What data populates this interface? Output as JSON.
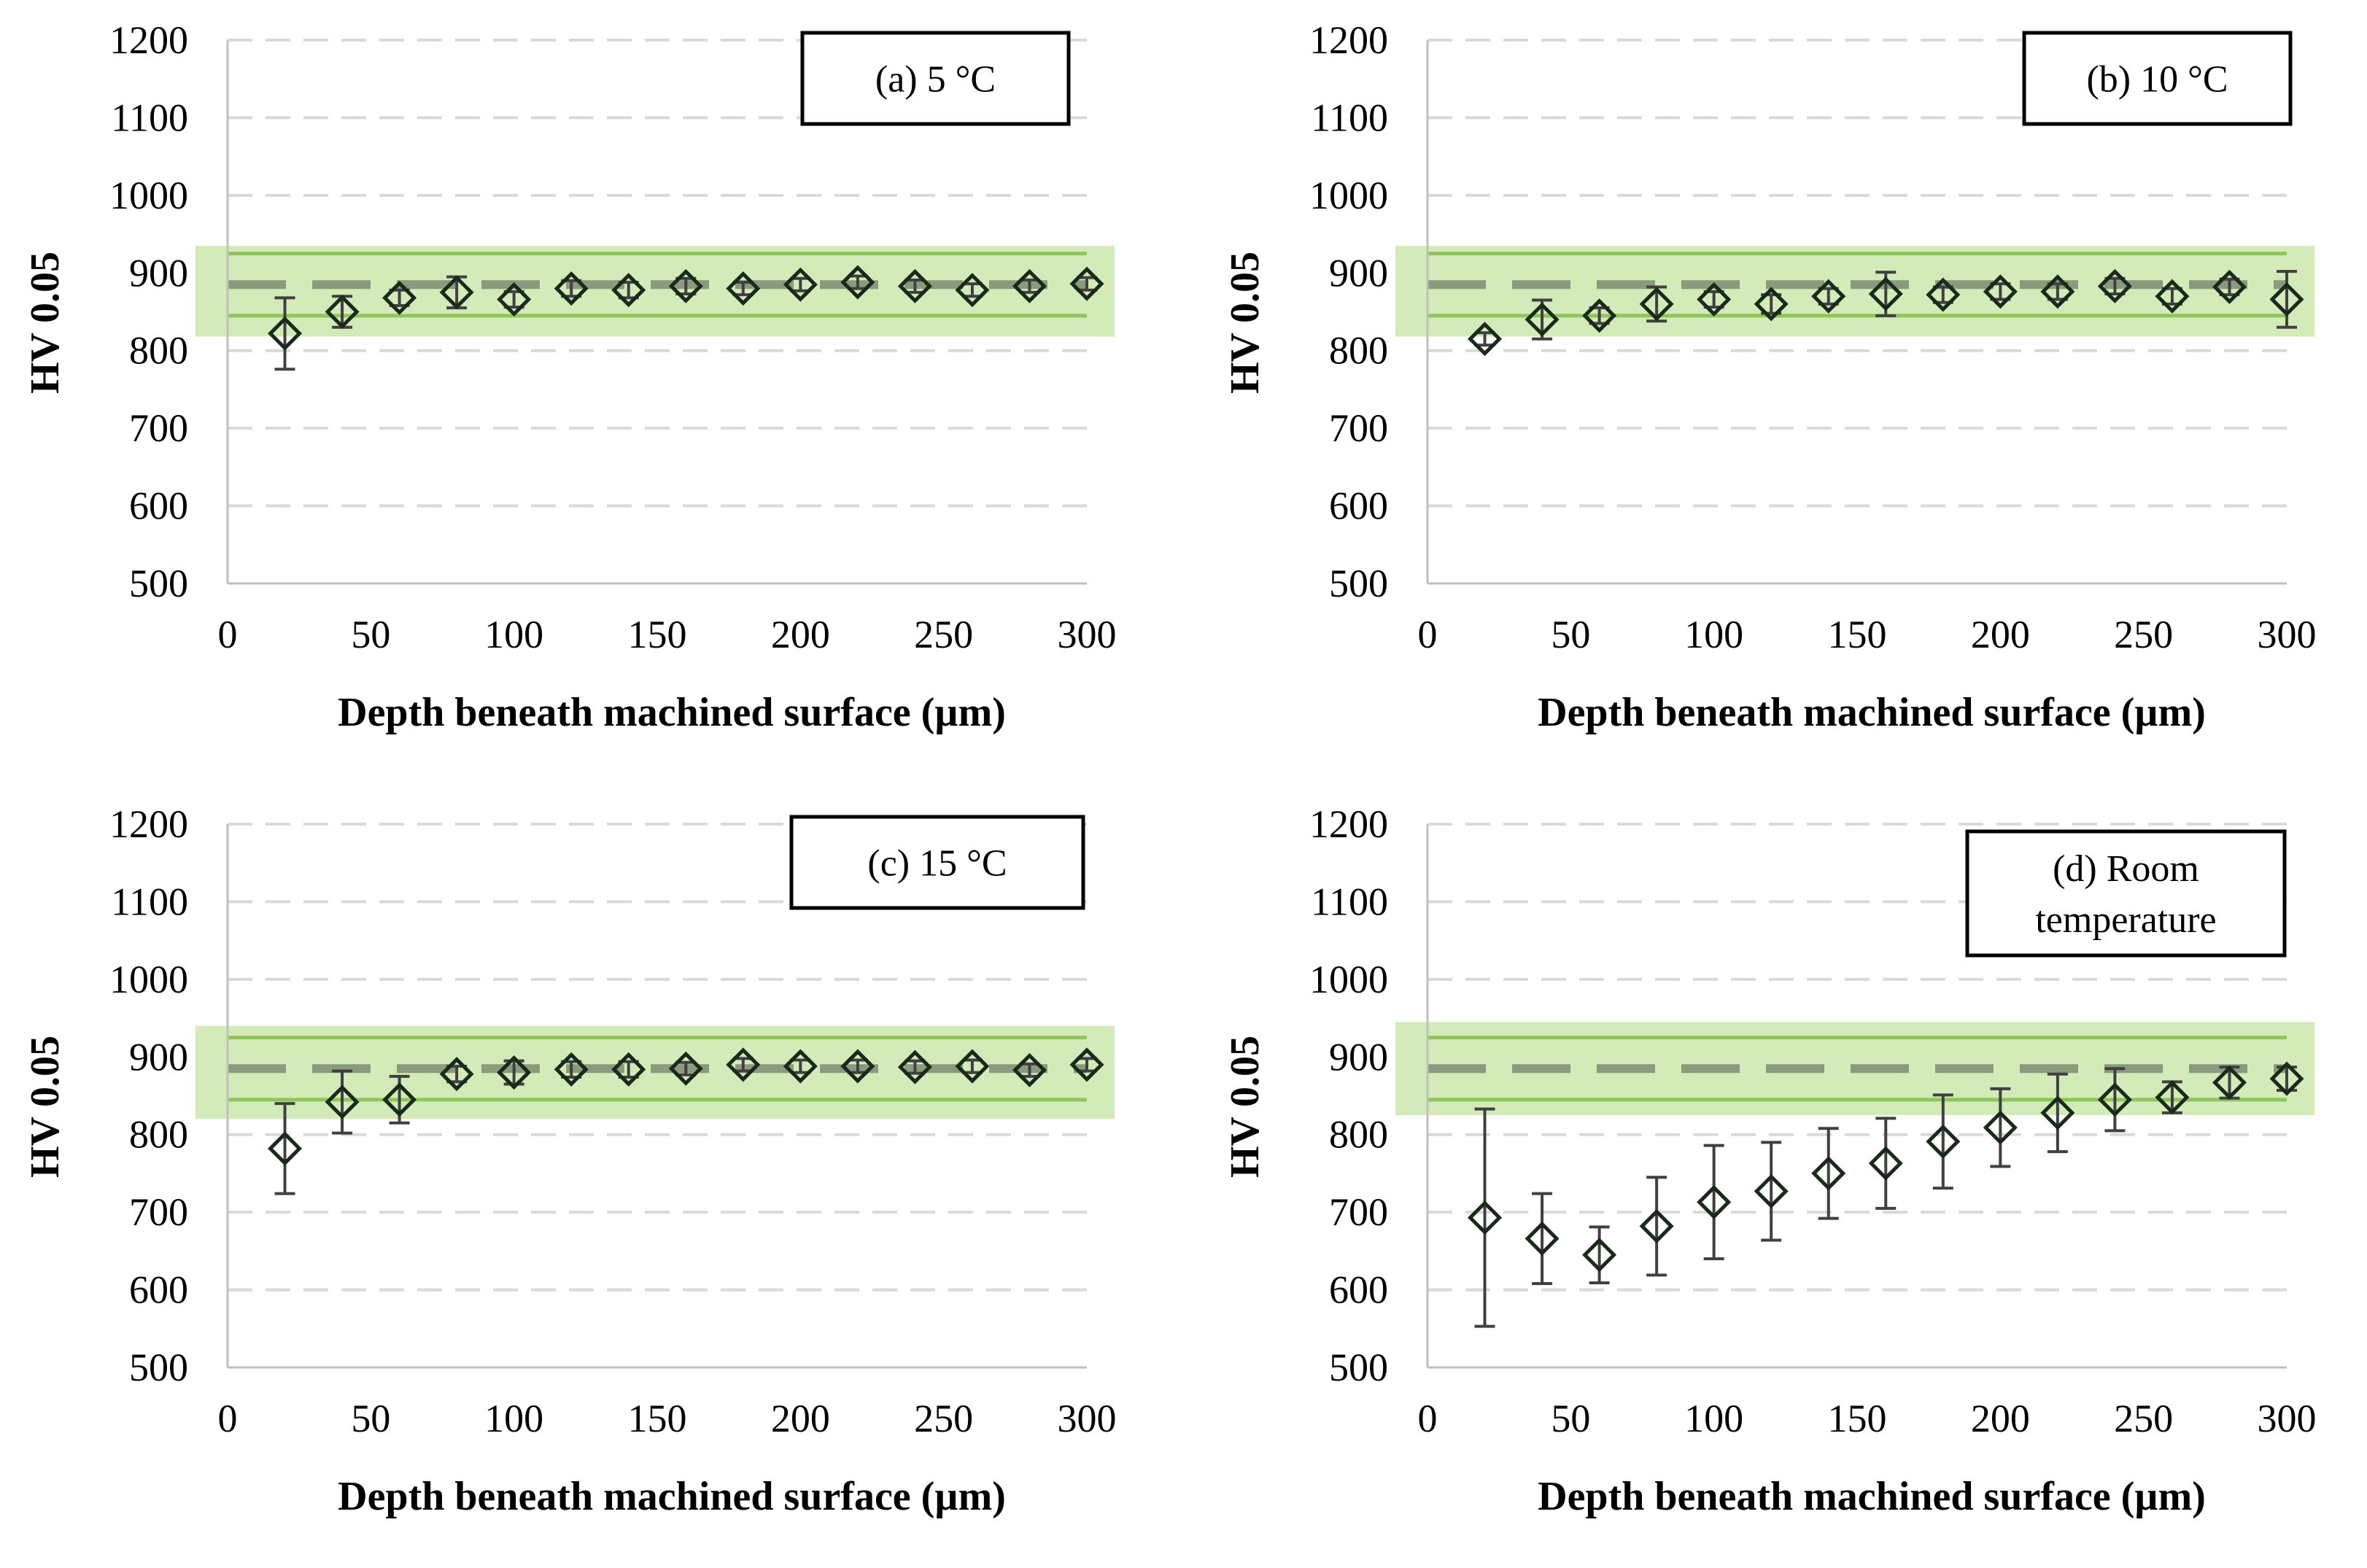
{
  "colors": {
    "band_fill": "#d3ebb8",
    "limit_line": "#8fc65c",
    "mean_line": "#8a9a7c",
    "grid": "#d9d9d9",
    "marker": "#1a2a1a",
    "errorbar": "#404040"
  },
  "chart_data": [
    {
      "type": "scatter",
      "panel_label": [
        "(a) 5 °C"
      ],
      "xlabel": "Depth beneath machined surface (µm)",
      "ylabel": "HV 0.05",
      "xlim": [
        0,
        300
      ],
      "ylim": [
        500,
        1200
      ],
      "xticks": [
        0,
        50,
        100,
        150,
        200,
        250,
        300
      ],
      "yticks": [
        500,
        600,
        700,
        800,
        900,
        1000,
        1100,
        1200
      ],
      "band": [
        818,
        935
      ],
      "limits": [
        845,
        925
      ],
      "mean": 885,
      "grid": "horizontal dashed",
      "series": [
        {
          "name": "HV 0.05",
          "x": [
            20,
            40,
            60,
            80,
            100,
            120,
            140,
            160,
            180,
            200,
            220,
            240,
            260,
            280,
            300
          ],
          "y": [
            822,
            850,
            868,
            875,
            866,
            880,
            878,
            883,
            880,
            885,
            888,
            883,
            878,
            883,
            886
          ],
          "err": [
            46,
            20,
            10,
            20,
            10,
            10,
            10,
            10,
            8,
            8,
            8,
            8,
            8,
            8,
            8
          ]
        }
      ]
    },
    {
      "type": "scatter",
      "panel_label": [
        "(b) 10 °C"
      ],
      "xlabel": "Depth beneath machined surface (µm)",
      "ylabel": "HV 0.05",
      "xlim": [
        0,
        300
      ],
      "ylim": [
        500,
        1200
      ],
      "xticks": [
        0,
        50,
        100,
        150,
        200,
        250,
        300
      ],
      "yticks": [
        500,
        600,
        700,
        800,
        900,
        1000,
        1100,
        1200
      ],
      "band": [
        818,
        935
      ],
      "limits": [
        845,
        925
      ],
      "mean": 885,
      "grid": "horizontal dashed",
      "series": [
        {
          "name": "HV 0.05",
          "x": [
            20,
            40,
            60,
            80,
            100,
            120,
            140,
            160,
            180,
            200,
            220,
            240,
            260,
            280,
            300
          ],
          "y": [
            815,
            840,
            845,
            860,
            866,
            860,
            870,
            873,
            872,
            876,
            876,
            883,
            870,
            882,
            866
          ],
          "err": [
            8,
            25,
            10,
            22,
            10,
            12,
            10,
            28,
            10,
            10,
            10,
            10,
            10,
            10,
            36
          ]
        }
      ]
    },
    {
      "type": "scatter",
      "panel_label": [
        "(c) 15 °C"
      ],
      "xlabel": "Depth beneath machined surface (µm)",
      "ylabel": "HV 0.05",
      "xlim": [
        0,
        300
      ],
      "ylim": [
        500,
        1200
      ],
      "xticks": [
        0,
        50,
        100,
        150,
        200,
        250,
        300
      ],
      "yticks": [
        500,
        600,
        700,
        800,
        900,
        1000,
        1100,
        1200
      ],
      "band": [
        820,
        940
      ],
      "limits": [
        845,
        925
      ],
      "mean": 885,
      "grid": "horizontal dashed",
      "series": [
        {
          "name": "HV 0.05",
          "x": [
            20,
            40,
            60,
            80,
            100,
            120,
            140,
            160,
            180,
            200,
            220,
            240,
            260,
            280,
            300
          ],
          "y": [
            782,
            842,
            845,
            878,
            880,
            884,
            884,
            885,
            890,
            888,
            888,
            887,
            888,
            883,
            890
          ],
          "err": [
            58,
            40,
            30,
            10,
            15,
            10,
            10,
            8,
            8,
            8,
            8,
            8,
            8,
            8,
            8
          ]
        }
      ]
    },
    {
      "type": "scatter",
      "panel_label": [
        "(d) Room",
        "temperature"
      ],
      "xlabel": "Depth beneath machined surface (µm)",
      "ylabel": "HV 0.05",
      "xlim": [
        0,
        300
      ],
      "ylim": [
        500,
        1200
      ],
      "xticks": [
        0,
        50,
        100,
        150,
        200,
        250,
        300
      ],
      "yticks": [
        500,
        600,
        700,
        800,
        900,
        1000,
        1100,
        1200
      ],
      "band": [
        825,
        945
      ],
      "limits": [
        845,
        925
      ],
      "mean": 885,
      "grid": "horizontal dashed",
      "series": [
        {
          "name": "HV 0.05",
          "x": [
            20,
            40,
            60,
            80,
            100,
            120,
            140,
            160,
            180,
            200,
            220,
            240,
            260,
            280,
            300
          ],
          "y": [
            693,
            666,
            645,
            682,
            713,
            727,
            750,
            763,
            791,
            809,
            828,
            845,
            848,
            867,
            872
          ],
          "err": [
            140,
            58,
            36,
            63,
            73,
            63,
            58,
            58,
            60,
            50,
            50,
            40,
            20,
            20,
            15
          ]
        }
      ]
    }
  ]
}
